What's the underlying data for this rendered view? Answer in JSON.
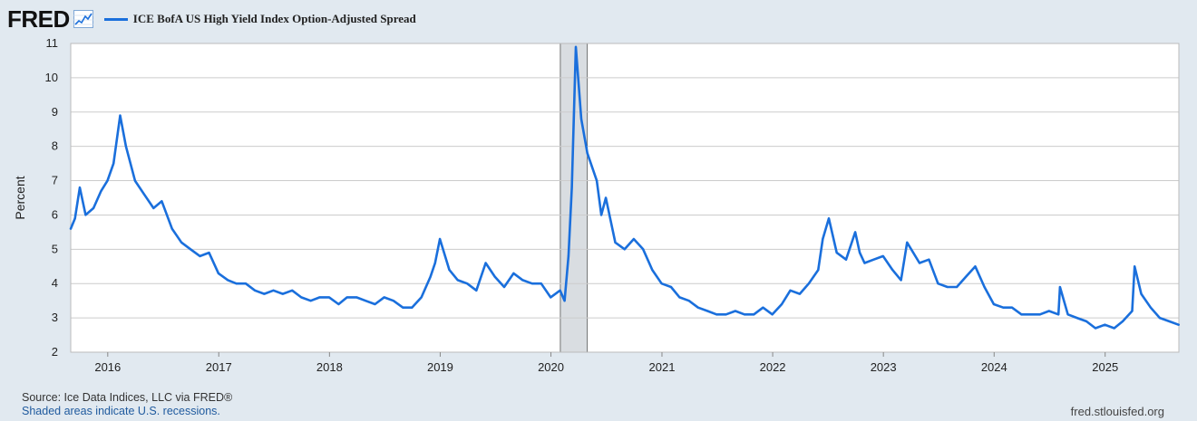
{
  "header": {
    "logo": "FRED",
    "logo_icon": "line-chart-icon"
  },
  "chart_data": {
    "type": "line",
    "title": "",
    "xlabel": "",
    "ylabel": "Percent",
    "ylim": [
      2,
      11
    ],
    "yticks": [
      "2",
      "3",
      "4",
      "5",
      "6",
      "7",
      "8",
      "9",
      "10",
      "11"
    ],
    "xlim": [
      "2015-09-01",
      "2025-09-01"
    ],
    "xticks": [
      "2016",
      "2017",
      "2018",
      "2019",
      "2020",
      "2021",
      "2022",
      "2023",
      "2024",
      "2025"
    ],
    "grid": "horizontal",
    "legend_position": "top-left",
    "colors": {
      "series": "#1a6fdc",
      "recession": "#d9dde1",
      "plot_bg": "#ffffff",
      "grid": "#cccccc"
    },
    "recessions": [
      {
        "start": "2020-02-01",
        "end": "2020-04-30"
      }
    ],
    "series": [
      {
        "name": "ICE BofA US High Yield Index Option-Adjusted Spread",
        "x": [
          "2015-09-01",
          "2015-09-15",
          "2015-10-01",
          "2015-10-20",
          "2015-11-15",
          "2015-12-10",
          "2015-12-31",
          "2016-01-20",
          "2016-02-11",
          "2016-03-01",
          "2016-03-31",
          "2016-04-30",
          "2016-05-31",
          "2016-06-27",
          "2016-07-31",
          "2016-08-31",
          "2016-09-30",
          "2016-10-31",
          "2016-11-30",
          "2016-12-31",
          "2017-01-31",
          "2017-02-28",
          "2017-03-31",
          "2017-04-30",
          "2017-05-31",
          "2017-06-30",
          "2017-07-31",
          "2017-08-31",
          "2017-09-30",
          "2017-10-31",
          "2017-11-30",
          "2017-12-31",
          "2018-01-31",
          "2018-02-28",
          "2018-03-31",
          "2018-04-30",
          "2018-05-31",
          "2018-06-30",
          "2018-07-31",
          "2018-08-31",
          "2018-09-30",
          "2018-10-31",
          "2018-11-30",
          "2018-12-15",
          "2018-12-31",
          "2019-01-31",
          "2019-02-28",
          "2019-03-31",
          "2019-04-30",
          "2019-05-31",
          "2019-06-30",
          "2019-07-31",
          "2019-08-31",
          "2019-09-30",
          "2019-10-31",
          "2019-11-30",
          "2019-12-31",
          "2020-01-31",
          "2020-02-15",
          "2020-02-28",
          "2020-03-10",
          "2020-03-23",
          "2020-04-10",
          "2020-04-30",
          "2020-05-31",
          "2020-06-15",
          "2020-06-30",
          "2020-07-31",
          "2020-08-31",
          "2020-09-30",
          "2020-10-31",
          "2020-11-30",
          "2020-12-31",
          "2021-01-31",
          "2021-02-28",
          "2021-03-31",
          "2021-04-30",
          "2021-05-31",
          "2021-06-30",
          "2021-07-31",
          "2021-08-31",
          "2021-09-30",
          "2021-10-31",
          "2021-11-30",
          "2021-12-31",
          "2022-01-31",
          "2022-02-28",
          "2022-03-31",
          "2022-04-30",
          "2022-05-31",
          "2022-06-15",
          "2022-07-05",
          "2022-07-31",
          "2022-08-31",
          "2022-09-30",
          "2022-10-15",
          "2022-10-31",
          "2022-11-30",
          "2022-12-31",
          "2023-01-31",
          "2023-02-28",
          "2023-03-20",
          "2023-04-30",
          "2023-05-31",
          "2023-06-30",
          "2023-07-31",
          "2023-08-31",
          "2023-09-30",
          "2023-10-31",
          "2023-11-30",
          "2023-12-31",
          "2024-01-31",
          "2024-02-29",
          "2024-03-31",
          "2024-04-30",
          "2024-05-31",
          "2024-06-30",
          "2024-07-31",
          "2024-08-05",
          "2024-08-31",
          "2024-09-30",
          "2024-10-31",
          "2024-11-30",
          "2024-12-31",
          "2025-01-31",
          "2025-02-28",
          "2025-03-31",
          "2025-04-08",
          "2025-04-30",
          "2025-05-31",
          "2025-06-30",
          "2025-07-31",
          "2025-08-31"
        ],
        "values": [
          5.6,
          5.9,
          6.8,
          6.0,
          6.2,
          6.7,
          7.0,
          7.5,
          8.9,
          8.0,
          7.0,
          6.6,
          6.2,
          6.4,
          5.6,
          5.2,
          5.0,
          4.8,
          4.9,
          4.3,
          4.1,
          4.0,
          4.0,
          3.8,
          3.7,
          3.8,
          3.7,
          3.8,
          3.6,
          3.5,
          3.6,
          3.6,
          3.4,
          3.6,
          3.6,
          3.5,
          3.4,
          3.6,
          3.5,
          3.3,
          3.3,
          3.6,
          4.2,
          4.6,
          5.3,
          4.4,
          4.1,
          4.0,
          3.8,
          4.6,
          4.2,
          3.9,
          4.3,
          4.1,
          4.0,
          4.0,
          3.6,
          3.8,
          3.5,
          4.8,
          6.8,
          10.9,
          8.8,
          7.8,
          7.0,
          6.0,
          6.5,
          5.2,
          5.0,
          5.3,
          5.0,
          4.4,
          4.0,
          3.9,
          3.6,
          3.5,
          3.3,
          3.2,
          3.1,
          3.1,
          3.2,
          3.1,
          3.1,
          3.3,
          3.1,
          3.4,
          3.8,
          3.7,
          4.0,
          4.4,
          5.3,
          5.9,
          4.9,
          4.7,
          5.5,
          4.9,
          4.6,
          4.7,
          4.8,
          4.4,
          4.1,
          5.2,
          4.6,
          4.7,
          4.0,
          3.9,
          3.9,
          4.2,
          4.5,
          3.9,
          3.4,
          3.3,
          3.3,
          3.1,
          3.1,
          3.1,
          3.2,
          3.1,
          3.9,
          3.1,
          3.0,
          2.9,
          2.7,
          2.8,
          2.7,
          2.9,
          3.2,
          4.5,
          3.7,
          3.3,
          3.0,
          2.9,
          2.8
        ]
      }
    ]
  },
  "footer": {
    "source": "Source: Ice Data Indices, LLC via FRED®",
    "note": "Shaded areas indicate U.S. recessions.",
    "site": "fred.stlouisfed.org"
  }
}
